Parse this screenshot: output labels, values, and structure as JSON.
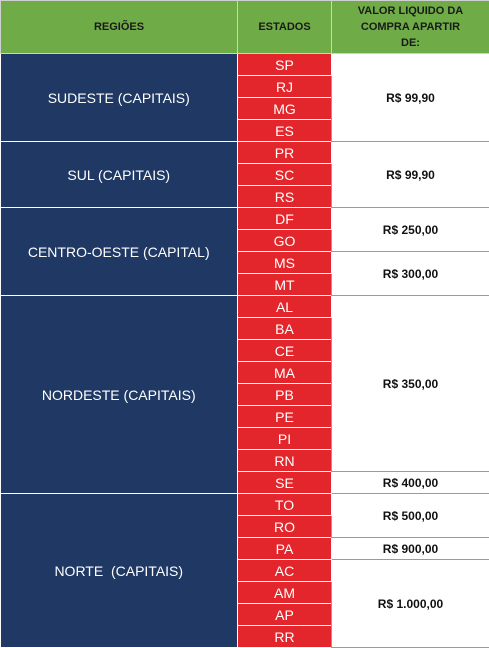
{
  "header": {
    "regions": "REGIÕES",
    "states": "ESTADOS",
    "value": "VALOR LIQUIDO DA COMPRA APARTIR DE:"
  },
  "regions": [
    {
      "name": "SUDESTE (CAPITAIS)",
      "price_groups": [
        {
          "price": "R$ 99,90",
          "states": [
            "SP",
            "RJ",
            "MG",
            "ES"
          ]
        }
      ]
    },
    {
      "name": "SUL (CAPITAIS)",
      "price_groups": [
        {
          "price": "R$ 99,90",
          "states": [
            "PR",
            "SC",
            "RS"
          ]
        }
      ]
    },
    {
      "name": "CENTRO-OESTE (CAPITAL)",
      "price_groups": [
        {
          "price": "R$ 250,00",
          "states": [
            "DF",
            "GO"
          ]
        },
        {
          "price": "R$ 300,00",
          "states": [
            "MS",
            "MT"
          ]
        }
      ]
    },
    {
      "name": "NORDESTE (CAPITAIS)",
      "price_groups": [
        {
          "price": "R$ 350,00",
          "states": [
            "AL",
            "BA",
            "CE",
            "MA",
            "PB",
            "PE",
            "PI",
            "RN"
          ]
        },
        {
          "price": "R$ 400,00",
          "states": [
            "SE"
          ]
        }
      ]
    },
    {
      "name": "NORTE  (CAPITAIS)",
      "price_groups": [
        {
          "price": "R$ 500,00",
          "states": [
            "TO",
            "RO"
          ]
        },
        {
          "price": "R$ 900,00",
          "states": [
            "PA"
          ]
        },
        {
          "price": "R$ 1.000,00",
          "states": [
            "AC",
            "AM",
            "AP",
            "RR"
          ]
        }
      ]
    }
  ]
}
